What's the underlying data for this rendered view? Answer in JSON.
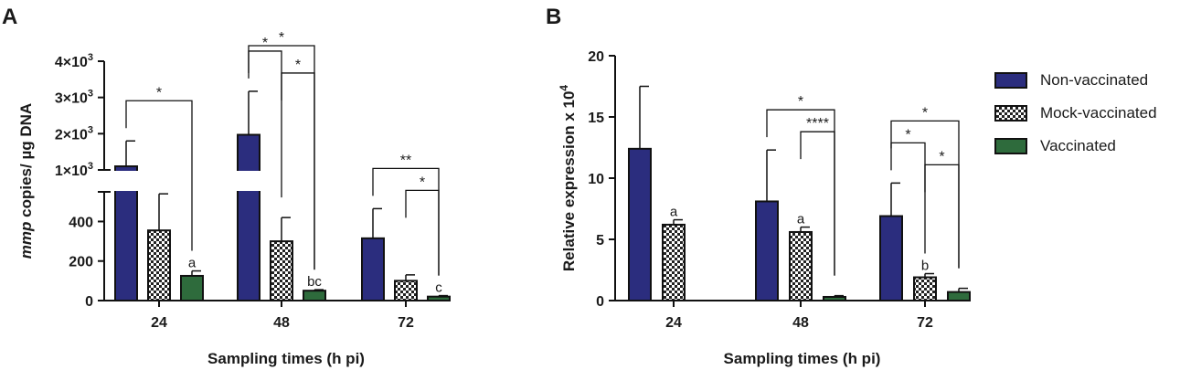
{
  "panel_labels": [
    "A",
    "B"
  ],
  "legend": [
    {
      "name": "Non-vaccinated",
      "pattern": "solid-navy"
    },
    {
      "name": "Mock-vaccinated",
      "pattern": "checker"
    },
    {
      "name": "Vaccinated",
      "pattern": "solid-green"
    }
  ],
  "colors": {
    "non_vaccinated": "#2b2d7e",
    "mock_vaccinated": "#ffffff",
    "vaccinated": "#2e6b3c",
    "axis": "#111111"
  },
  "chart_data": [
    {
      "panel": "A",
      "type": "bar",
      "title": "",
      "xlabel": "Sampling times (h pi)",
      "ylabel_italic": "mmp",
      "ylabel_rest": " copies/ µg DNA",
      "categories": [
        "24",
        "48",
        "72"
      ],
      "series": [
        {
          "name": "Non-vaccinated",
          "values": [
            1100,
            1970,
            315
          ],
          "errors": [
            700,
            1200,
            150
          ]
        },
        {
          "name": "Mock-vaccinated",
          "values": [
            355,
            300,
            100
          ],
          "errors": [
            185,
            120,
            30
          ]
        },
        {
          "name": "Vaccinated",
          "values": [
            125,
            50,
            20
          ],
          "errors": [
            25,
            5,
            5
          ]
        }
      ],
      "axis_break": {
        "lower_range": [
          0,
          550
        ],
        "upper_range": [
          1000,
          4000
        ]
      },
      "y_ticks_lower": [
        "0",
        "200",
        "400"
      ],
      "y_ticks_upper": [
        {
          "value": 1000,
          "mantissa": "1×10",
          "exp": "3"
        },
        {
          "value": 2000,
          "mantissa": "2×10",
          "exp": "3"
        },
        {
          "value": 3000,
          "mantissa": "3×10",
          "exp": "3"
        },
        {
          "value": 4000,
          "mantissa": "4×10",
          "exp": "3"
        }
      ],
      "bar_labels": [
        {
          "category": 0,
          "series": 2,
          "text": "a"
        },
        {
          "category": 1,
          "series": 2,
          "text": "bc"
        },
        {
          "category": 2,
          "series": 2,
          "text": "c"
        }
      ],
      "significance": [
        {
          "category": 0,
          "from": 0,
          "to": 2,
          "label": "*",
          "level": 1
        },
        {
          "category": 1,
          "from": 0,
          "to": 1,
          "label": "*",
          "level": 1
        },
        {
          "category": 1,
          "from": 0,
          "to": 2,
          "label": "*",
          "level": 2
        },
        {
          "category": 1,
          "from": 1,
          "to": 2,
          "label": "*",
          "level": 0
        },
        {
          "category": 2,
          "from": 0,
          "to": 2,
          "label": "**",
          "level": 1
        },
        {
          "category": 2,
          "from": 1,
          "to": 2,
          "label": "*",
          "level": 0
        }
      ]
    },
    {
      "panel": "B",
      "type": "bar",
      "title": "",
      "xlabel": "Sampling times (h pi)",
      "ylabel": "Relative expression x 10",
      "ylabel_exp": "4",
      "categories": [
        "24",
        "48",
        "72"
      ],
      "ylim": [
        0,
        20
      ],
      "y_ticks": [
        "0",
        "5",
        "10",
        "15",
        "20"
      ],
      "series": [
        {
          "name": "Non-vaccinated",
          "values": [
            12.4,
            8.1,
            6.9
          ],
          "errors": [
            5.1,
            4.2,
            2.7
          ]
        },
        {
          "name": "Mock-vaccinated",
          "values": [
            6.2,
            5.6,
            1.9
          ],
          "errors": [
            0.4,
            0.4,
            0.3
          ]
        },
        {
          "name": "Vaccinated",
          "values": [
            null,
            0.3,
            0.7
          ],
          "errors": [
            null,
            0.1,
            0.3
          ]
        }
      ],
      "bar_labels": [
        {
          "category": 0,
          "series": 1,
          "text": "a"
        },
        {
          "category": 1,
          "series": 1,
          "text": "a"
        },
        {
          "category": 2,
          "series": 1,
          "text": "b"
        }
      ],
      "significance": [
        {
          "category": 1,
          "from": 0,
          "to": 2,
          "label": "*",
          "level": 1
        },
        {
          "category": 1,
          "from": 1,
          "to": 2,
          "label": "****",
          "level": 0
        },
        {
          "category": 2,
          "from": 0,
          "to": 1,
          "label": "*",
          "level": 1
        },
        {
          "category": 2,
          "from": 0,
          "to": 2,
          "label": "*",
          "level": 2
        },
        {
          "category": 2,
          "from": 1,
          "to": 2,
          "label": "*",
          "level": 0
        }
      ]
    }
  ]
}
